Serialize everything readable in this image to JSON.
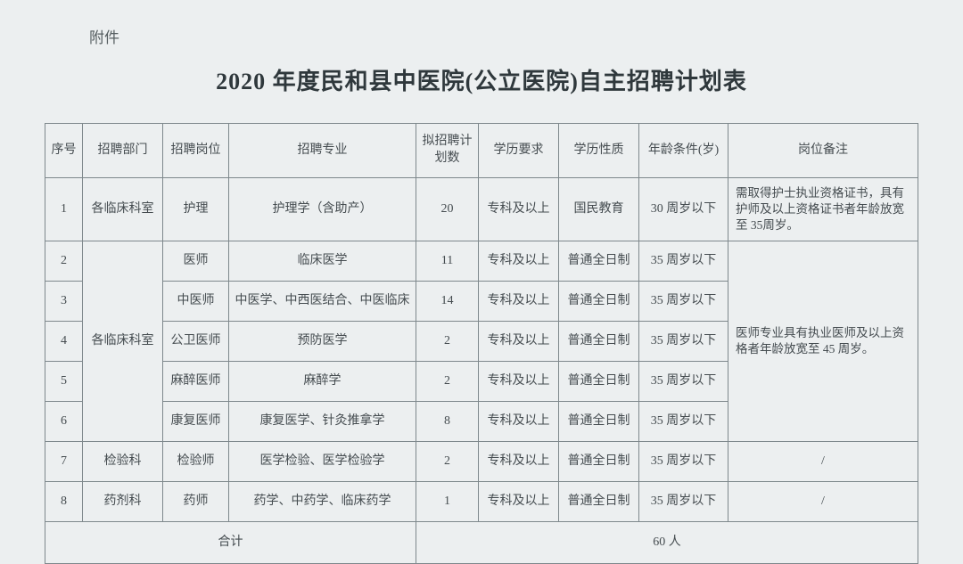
{
  "attachment_label": "附件",
  "title": "2020 年度民和县中医院(公立医院)自主招聘计划表",
  "headers": {
    "idx": "序号",
    "dept": "招聘部门",
    "post": "招聘岗位",
    "major": "招聘专业",
    "count": "拟招聘计划数",
    "edu": "学历要求",
    "etype": "学历性质",
    "age": "年龄条件(岁)",
    "note": "岗位备注"
  },
  "rows": [
    {
      "idx": "1",
      "dept": "各临床科室",
      "post": "护理",
      "major": "护理学（含助产）",
      "count": "20",
      "edu": "专科及以上",
      "etype": "国民教育",
      "age": "30 周岁以下"
    },
    {
      "idx": "2",
      "dept": "各临床科室",
      "post": "医师",
      "major": "临床医学",
      "count": "11",
      "edu": "专科及以上",
      "etype": "普通全日制",
      "age": "35 周岁以下"
    },
    {
      "idx": "3",
      "dept": "",
      "post": "中医师",
      "major": "中医学、中西医结合、中医临床",
      "count": "14",
      "edu": "专科及以上",
      "etype": "普通全日制",
      "age": "35 周岁以下"
    },
    {
      "idx": "4",
      "dept": "",
      "post": "公卫医师",
      "major": "预防医学",
      "count": "2",
      "edu": "专科及以上",
      "etype": "普通全日制",
      "age": "35 周岁以下"
    },
    {
      "idx": "5",
      "dept": "",
      "post": "麻醉医师",
      "major": "麻醉学",
      "count": "2",
      "edu": "专科及以上",
      "etype": "普通全日制",
      "age": "35 周岁以下"
    },
    {
      "idx": "6",
      "dept": "",
      "post": "康复医师",
      "major": "康复医学、针灸推拿学",
      "count": "8",
      "edu": "专科及以上",
      "etype": "普通全日制",
      "age": "35 周岁以下"
    },
    {
      "idx": "7",
      "dept": "检验科",
      "post": "检验师",
      "major": "医学检验、医学检验学",
      "count": "2",
      "edu": "专科及以上",
      "etype": "普通全日制",
      "age": "35 周岁以下",
      "note": "/"
    },
    {
      "idx": "8",
      "dept": "药剂科",
      "post": "药师",
      "major": "药学、中药学、临床药学",
      "count": "1",
      "edu": "专科及以上",
      "etype": "普通全日制",
      "age": "35 周岁以下",
      "note": "/"
    }
  ],
  "note_row1": "需取得护士执业资格证书，具有护师及以上资格证书者年龄放宽至 35周岁。",
  "note_block2": "医师专业具有执业医师及以上资格者年龄放宽至 45 周岁。",
  "total_label": "合计",
  "total_value": "60 人",
  "style": {
    "page_bg": "#eceff0",
    "text_color": "#454c50",
    "border_color": "#7e888c",
    "title_fontsize": 26,
    "body_fontsize": 14,
    "font_family": "SimSun"
  }
}
